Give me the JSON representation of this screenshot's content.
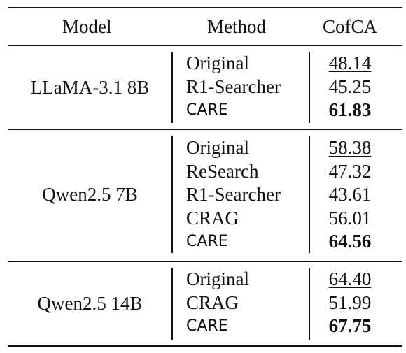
{
  "headers": {
    "model": "Model",
    "method": "Method",
    "metric": "CofCA"
  },
  "groups": [
    {
      "model": "LLaMA-3.1 8B",
      "rows": [
        {
          "method": "Original",
          "score": "48.14"
        },
        {
          "method": "R1-Searcher",
          "score": "45.25"
        },
        {
          "method": "CARE",
          "score": "61.83"
        }
      ]
    },
    {
      "model": "Qwen2.5 7B",
      "rows": [
        {
          "method": "Original",
          "score": "58.38"
        },
        {
          "method": "ReSearch",
          "score": "47.32"
        },
        {
          "method": "R1-Searcher",
          "score": "43.61"
        },
        {
          "method": "CRAG",
          "score": "56.01"
        },
        {
          "method": "CARE",
          "score": "64.56"
        }
      ]
    },
    {
      "model": "Qwen2.5 14B",
      "rows": [
        {
          "method": "Original",
          "score": "64.40"
        },
        {
          "method": "CRAG",
          "score": "51.99"
        },
        {
          "method": "CARE",
          "score": "67.75"
        }
      ]
    }
  ]
}
